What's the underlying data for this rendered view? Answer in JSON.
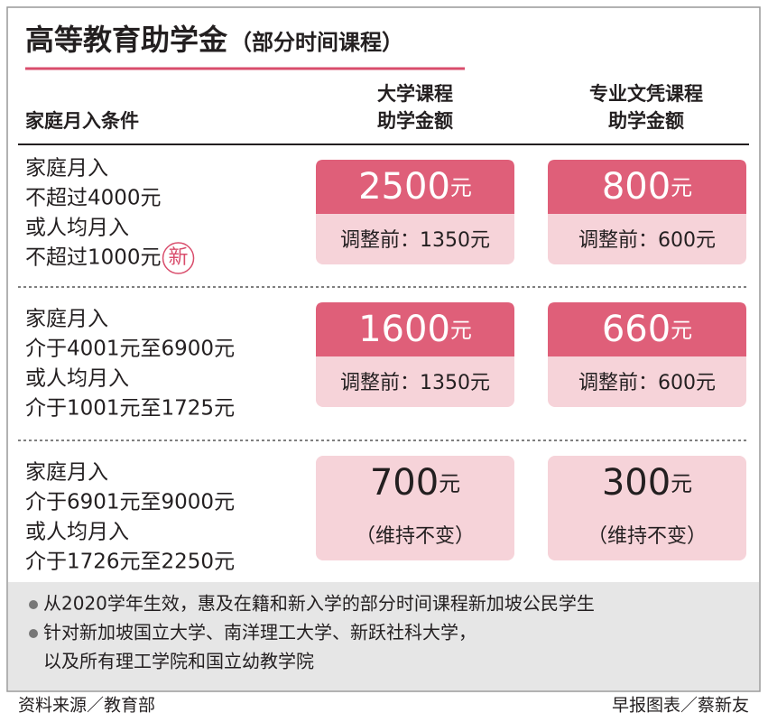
{
  "header": {
    "title": "高等教育助学金",
    "subtitle": "（部分时间课程）"
  },
  "table": {
    "columns": [
      [
        "家庭月入条件"
      ],
      [
        "大学课程",
        "助学金额"
      ],
      [
        "专业文凭课程",
        "助学金额"
      ]
    ],
    "rows": [
      {
        "condition": [
          "家庭月入",
          "不超过4000元",
          "或人均月入",
          "不超过1000元"
        ],
        "badge": "新",
        "cells": [
          {
            "amount": "2500",
            "unit": "元",
            "note": "调整前：1350元"
          },
          {
            "amount": "800",
            "unit": "元",
            "note": "调整前：600元"
          }
        ]
      },
      {
        "condition": [
          "家庭月入",
          "介于4001元至6900元",
          "或人均月入",
          "介于1001元至1725元"
        ],
        "cells": [
          {
            "amount": "1600",
            "unit": "元",
            "note": "调整前：1350元"
          },
          {
            "amount": "660",
            "unit": "元",
            "note": "调整前：600元"
          }
        ]
      },
      {
        "condition": [
          "家庭月入",
          "介于6901元至9000元",
          "或人均月入",
          "介于1726元至2250元"
        ],
        "cells": [
          {
            "amount": "700",
            "unit": "元",
            "note": "（维持不变）"
          },
          {
            "amount": "300",
            "unit": "元",
            "note": "（维持不变）"
          }
        ]
      }
    ]
  },
  "notes": [
    [
      "从2020学年生效，惠及在籍和新入学的部分时间课程新加坡公民学生"
    ],
    [
      "针对新加坡国立大学、南洋理工大学、新跃社科大学，",
      "以及所有理工学院和国立幼教学院"
    ]
  ],
  "footer": {
    "source": "资料来源／教育部",
    "credit": "早报图表／蔡新友"
  }
}
